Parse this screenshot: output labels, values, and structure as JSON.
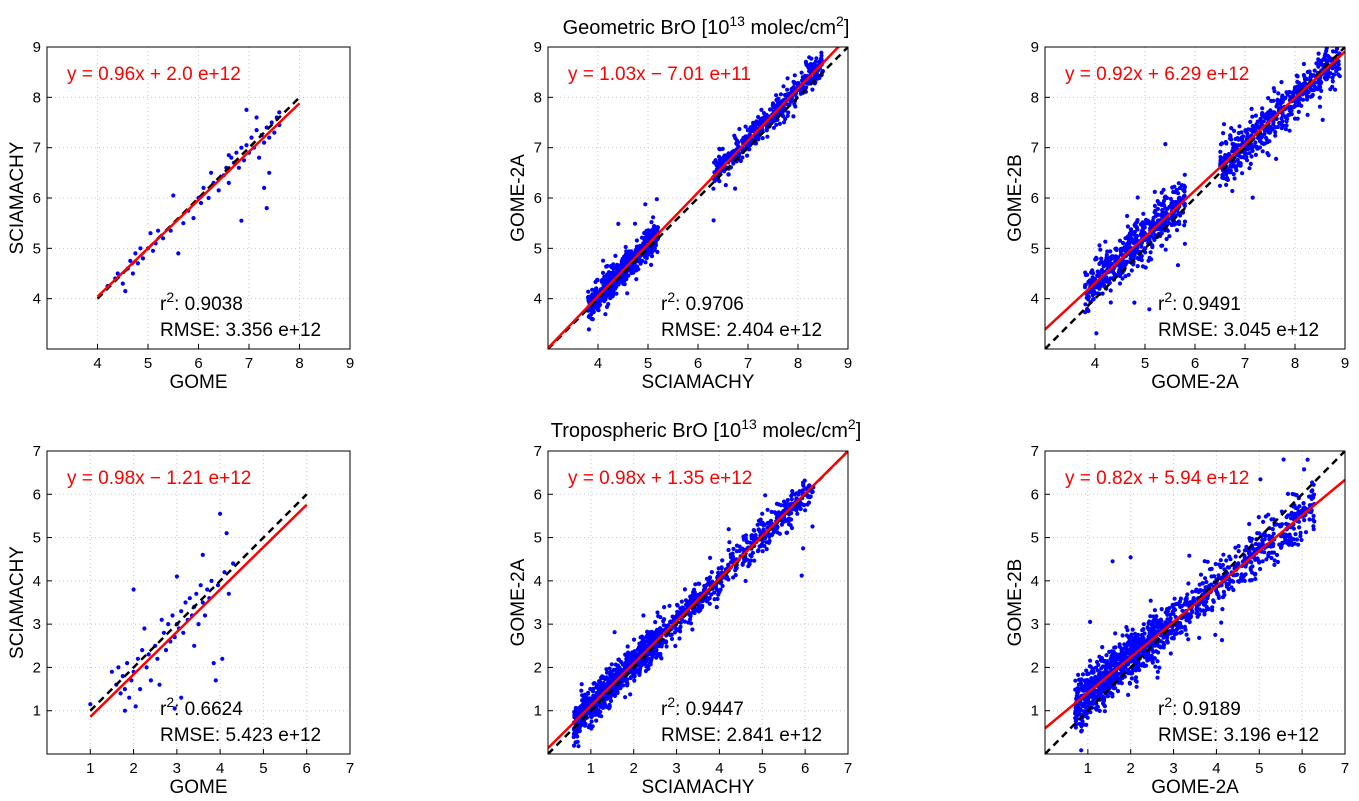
{
  "figure": {
    "row_titles": [
      {
        "prefix": "Geometric BrO [10",
        "exp": "13",
        "mid": " molec/cm",
        "exp2": "2",
        "suffix": "]"
      },
      {
        "prefix": "Tropospheric BrO [10",
        "exp": "13",
        "mid": " molec/cm",
        "exp2": "2",
        "suffix": "]"
      }
    ]
  },
  "chart_data": [
    {
      "type": "scatter",
      "xlabel": "GOME",
      "ylabel": "SCIAMACHY",
      "xlim": [
        3,
        9
      ],
      "ylim": [
        3,
        9
      ],
      "xticks": [
        4,
        5,
        6,
        7,
        8,
        9
      ],
      "yticks": [
        4,
        5,
        6,
        7,
        8,
        9
      ],
      "grid": true,
      "fit": {
        "slope": 0.96,
        "intercept": 0.2,
        "x_range": [
          4,
          8
        ],
        "color": "#ff0000"
      },
      "one_to_one": {
        "x_range": [
          4,
          8
        ],
        "color": "#000000"
      },
      "equation": "y = 0.96x + 2.0 e+12",
      "r2_label": "r",
      "r2_sup": "2",
      "r2_value": ": 0.9038",
      "rmse": "RMSE: 3.356 e+12",
      "point_color": "#0000ff",
      "points": [
        [
          4.2,
          4.25
        ],
        [
          4.35,
          4.4
        ],
        [
          4.4,
          4.5
        ],
        [
          4.5,
          4.3
        ],
        [
          4.55,
          4.15
        ],
        [
          4.6,
          4.6
        ],
        [
          4.65,
          4.75
        ],
        [
          4.7,
          4.5
        ],
        [
          4.75,
          4.9
        ],
        [
          4.8,
          4.7
        ],
        [
          4.85,
          5.0
        ],
        [
          4.9,
          4.8
        ],
        [
          5.0,
          5.0
        ],
        [
          5.05,
          5.3
        ],
        [
          5.1,
          4.95
        ],
        [
          5.15,
          5.1
        ],
        [
          5.2,
          5.35
        ],
        [
          5.3,
          5.2
        ],
        [
          5.45,
          5.35
        ],
        [
          5.5,
          6.05
        ],
        [
          5.6,
          4.9
        ],
        [
          5.7,
          5.5
        ],
        [
          5.8,
          5.75
        ],
        [
          5.9,
          5.6
        ],
        [
          6.0,
          6.0
        ],
        [
          6.05,
          5.9
        ],
        [
          6.1,
          6.2
        ],
        [
          6.2,
          6.0
        ],
        [
          6.3,
          6.3
        ],
        [
          6.4,
          6.15
        ],
        [
          6.5,
          6.45
        ],
        [
          6.55,
          6.6
        ],
        [
          6.6,
          6.3
        ],
        [
          6.65,
          6.8
        ],
        [
          6.7,
          6.7
        ],
        [
          6.75,
          6.9
        ],
        [
          6.8,
          6.6
        ],
        [
          6.85,
          7.0
        ],
        [
          6.9,
          6.75
        ],
        [
          6.95,
          7.05
        ],
        [
          7.0,
          6.9
        ],
        [
          7.05,
          7.2
        ],
        [
          7.1,
          7.0
        ],
        [
          7.15,
          7.35
        ],
        [
          7.2,
          6.8
        ],
        [
          7.25,
          7.25
        ],
        [
          7.3,
          7.1
        ],
        [
          7.35,
          7.4
        ],
        [
          7.4,
          7.2
        ],
        [
          7.45,
          7.5
        ],
        [
          7.5,
          7.3
        ],
        [
          7.55,
          7.6
        ],
        [
          7.6,
          7.45
        ],
        [
          7.3,
          6.2
        ],
        [
          7.35,
          5.8
        ],
        [
          6.85,
          5.55
        ],
        [
          7.6,
          7.7
        ],
        [
          6.95,
          7.75
        ],
        [
          7.15,
          7.6
        ],
        [
          6.6,
          6.85
        ],
        [
          7.4,
          6.5
        ],
        [
          6.25,
          6.5
        ]
      ]
    },
    {
      "type": "scatter",
      "xlabel": "SCIAMACHY",
      "ylabel": "GOME-2A",
      "xlim": [
        3,
        9
      ],
      "ylim": [
        3,
        9
      ],
      "xticks": [
        4,
        5,
        6,
        7,
        8,
        9
      ],
      "yticks": [
        4,
        5,
        6,
        7,
        8,
        9
      ],
      "grid": true,
      "fit": {
        "slope": 1.03,
        "intercept": -0.0701,
        "x_range": [
          3,
          9
        ],
        "color": "#ff0000"
      },
      "one_to_one": {
        "x_range": [
          3,
          9
        ],
        "color": "#000000"
      },
      "equation": "y = 1.03x − 7.01 e+11",
      "r2_label": "r",
      "r2_sup": "2",
      "r2_value": ": 0.9706",
      "rmse": "RMSE: 2.404 e+12",
      "point_color": "#0000ff",
      "cloud": {
        "n": 1100,
        "x_clusters": [
          [
            3.8,
            5.2,
            0.55
          ],
          [
            6.3,
            8.5,
            0.45
          ]
        ],
        "noise_sd": 0.14,
        "seed": 11
      }
    },
    {
      "type": "scatter",
      "xlabel": "GOME-2A",
      "ylabel": "GOME-2B",
      "xlim": [
        3,
        9
      ],
      "ylim": [
        3,
        9
      ],
      "xticks": [
        4,
        5,
        6,
        7,
        8,
        9
      ],
      "yticks": [
        4,
        5,
        6,
        7,
        8,
        9
      ],
      "grid": true,
      "fit": {
        "slope": 0.92,
        "intercept": 0.629,
        "x_range": [
          3,
          9
        ],
        "color": "#ff0000"
      },
      "one_to_one": {
        "x_range": [
          3,
          9
        ],
        "color": "#000000"
      },
      "equation": "y = 0.92x + 6.29 e+12",
      "r2_label": "r",
      "r2_sup": "2",
      "r2_value": ": 0.9491",
      "rmse": "RMSE: 3.045 e+12",
      "point_color": "#0000ff",
      "cloud": {
        "n": 1100,
        "x_clusters": [
          [
            3.8,
            5.8,
            0.5
          ],
          [
            6.5,
            8.9,
            0.5
          ]
        ],
        "noise_sd": 0.22,
        "seed": 23
      }
    },
    {
      "type": "scatter",
      "xlabel": "GOME",
      "ylabel": "SCIAMACHY",
      "xlim": [
        0,
        7
      ],
      "ylim": [
        0,
        7
      ],
      "xticks": [
        1,
        2,
        3,
        4,
        5,
        6,
        7
      ],
      "yticks": [
        1,
        2,
        3,
        4,
        5,
        6,
        7
      ],
      "grid": true,
      "fit": {
        "slope": 0.98,
        "intercept": -0.121,
        "x_range": [
          1,
          6
        ],
        "color": "#ff0000"
      },
      "one_to_one": {
        "x_range": [
          1,
          6
        ],
        "color": "#000000"
      },
      "equation": "y = 0.98x − 1.21 e+12",
      "r2_label": "r",
      "r2_sup": "2",
      "r2_value": ": 0.6624",
      "rmse": "RMSE: 5.423 e+12",
      "point_color": "#0000ff",
      "points": [
        [
          1.0,
          1.15
        ],
        [
          1.5,
          1.9
        ],
        [
          1.6,
          1.6
        ],
        [
          1.65,
          2.0
        ],
        [
          1.7,
          1.4
        ],
        [
          1.75,
          1.8
        ],
        [
          1.8,
          1.5
        ],
        [
          1.85,
          2.1
        ],
        [
          1.9,
          1.3
        ],
        [
          1.95,
          1.7
        ],
        [
          2.0,
          3.8
        ],
        [
          2.0,
          1.9
        ],
        [
          2.05,
          1.1
        ],
        [
          2.1,
          2.2
        ],
        [
          2.15,
          1.5
        ],
        [
          2.2,
          2.4
        ],
        [
          2.3,
          2.0
        ],
        [
          2.35,
          2.3
        ],
        [
          2.4,
          1.7
        ],
        [
          2.5,
          2.5
        ],
        [
          2.55,
          2.2
        ],
        [
          2.6,
          1.6
        ],
        [
          2.7,
          2.8
        ],
        [
          2.75,
          2.4
        ],
        [
          2.8,
          3.0
        ],
        [
          2.85,
          2.6
        ],
        [
          2.9,
          3.2
        ],
        [
          2.95,
          2.7
        ],
        [
          3.0,
          3.0
        ],
        [
          3.05,
          2.9
        ],
        [
          3.1,
          3.3
        ],
        [
          3.15,
          2.8
        ],
        [
          3.2,
          3.5
        ],
        [
          3.25,
          3.1
        ],
        [
          3.3,
          3.6
        ],
        [
          3.35,
          3.2
        ],
        [
          3.4,
          3.4
        ],
        [
          3.45,
          3.7
        ],
        [
          3.5,
          3.0
        ],
        [
          3.55,
          3.9
        ],
        [
          3.6,
          3.5
        ],
        [
          3.65,
          3.2
        ],
        [
          3.7,
          3.8
        ],
        [
          3.75,
          3.6
        ],
        [
          3.8,
          4.0
        ],
        [
          3.85,
          2.1
        ],
        [
          3.9,
          1.7
        ],
        [
          3.95,
          3.9
        ],
        [
          4.0,
          5.55
        ],
        [
          4.05,
          2.2
        ],
        [
          4.1,
          4.2
        ],
        [
          4.15,
          5.1
        ],
        [
          4.2,
          3.7
        ],
        [
          4.3,
          4.4
        ],
        [
          3.1,
          1.3
        ],
        [
          2.95,
          1.05
        ],
        [
          2.25,
          2.9
        ],
        [
          1.8,
          1.0
        ],
        [
          3.0,
          4.1
        ],
        [
          3.6,
          4.6
        ],
        [
          2.65,
          3.1
        ],
        [
          3.4,
          2.5
        ]
      ]
    },
    {
      "type": "scatter",
      "xlabel": "SCIAMACHY",
      "ylabel": "GOME-2A",
      "xlim": [
        0,
        7
      ],
      "ylim": [
        0,
        7
      ],
      "xticks": [
        1,
        2,
        3,
        4,
        5,
        6,
        7
      ],
      "yticks": [
        1,
        2,
        3,
        4,
        5,
        6,
        7
      ],
      "grid": true,
      "fit": {
        "slope": 0.98,
        "intercept": 0.135,
        "x_range": [
          0,
          7
        ],
        "color": "#ff0000"
      },
      "one_to_one": {
        "x_range": [
          0,
          7
        ],
        "color": "#000000"
      },
      "equation": "y = 0.98x + 1.35 e+12",
      "r2_label": "r",
      "r2_sup": "2",
      "r2_value": ": 0.9447",
      "rmse": "RMSE: 2.841 e+12",
      "point_color": "#0000ff",
      "cloud": {
        "n": 1300,
        "x_clusters": [
          [
            0.6,
            2.6,
            0.6
          ],
          [
            2.5,
            6.2,
            0.4
          ]
        ],
        "noise_sd": 0.2,
        "seed": 37
      }
    },
    {
      "type": "scatter",
      "xlabel": "GOME-2A",
      "ylabel": "GOME-2B",
      "xlim": [
        0,
        7
      ],
      "ylim": [
        0,
        7
      ],
      "xticks": [
        1,
        2,
        3,
        4,
        5,
        6,
        7
      ],
      "yticks": [
        1,
        2,
        3,
        4,
        5,
        6,
        7
      ],
      "grid": true,
      "fit": {
        "slope": 0.82,
        "intercept": 0.594,
        "x_range": [
          0,
          7
        ],
        "color": "#ff0000"
      },
      "one_to_one": {
        "x_range": [
          0,
          7
        ],
        "color": "#000000"
      },
      "equation": "y = 0.82x + 5.94 e+12",
      "r2_label": "r",
      "r2_sup": "2",
      "r2_value": ": 0.9189",
      "rmse": "RMSE: 3.196 e+12",
      "point_color": "#0000ff",
      "cloud": {
        "n": 1300,
        "x_clusters": [
          [
            0.7,
            2.6,
            0.55
          ],
          [
            2.5,
            6.3,
            0.45
          ]
        ],
        "noise_sd": 0.28,
        "seed": 53
      }
    }
  ]
}
